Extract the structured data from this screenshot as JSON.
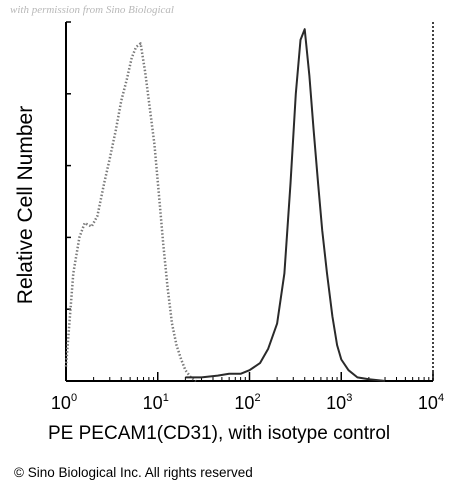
{
  "watermark": "with permission from Sino Biological",
  "copyright": "© Sino Biological Inc. All rights reserved",
  "chart_data": {
    "type": "area",
    "title": "",
    "xlabel": "PE PECAM1(CD31), with isotype control",
    "ylabel": "Relative Cell Number",
    "xscale": "log",
    "xlim": [
      1,
      10000
    ],
    "ylim": [
      0,
      100
    ],
    "grid": false,
    "x_ticks": [
      {
        "base": "10",
        "exp": "0"
      },
      {
        "base": "10",
        "exp": "1"
      },
      {
        "base": "10",
        "exp": "2"
      },
      {
        "base": "10",
        "exp": "3"
      },
      {
        "base": "10",
        "exp": "4"
      }
    ],
    "colors": {
      "axis": "#000000",
      "isotype": "#7a7a7a",
      "sample": "#2a2a2a"
    },
    "series": [
      {
        "line_style": "dotted",
        "x": [
          1.0,
          1.2,
          1.4,
          1.6,
          1.9,
          2.2,
          2.6,
          3.0,
          3.5,
          4.0,
          4.6,
          5.2,
          5.8,
          6.5,
          7.3,
          8.2,
          9.2,
          10.3,
          11.5,
          12.8,
          14.3,
          16.0,
          18.0,
          20.0,
          23.0,
          26.0
        ],
        "y": [
          4,
          30,
          40,
          44,
          43,
          46,
          55,
          62,
          70,
          78,
          84,
          90,
          93,
          94,
          86,
          76,
          66,
          52,
          38,
          26,
          16,
          10,
          6,
          3,
          1,
          0
        ]
      },
      {
        "line_style": "solid",
        "x": [
          20,
          30,
          45,
          60,
          80,
          100,
          130,
          160,
          200,
          240,
          280,
          320,
          360,
          400,
          450,
          500,
          560,
          620,
          700,
          800,
          900,
          1000,
          1200,
          1500,
          2000,
          3000
        ],
        "y": [
          1,
          1,
          1.5,
          2,
          2,
          3,
          5,
          9,
          16,
          30,
          55,
          80,
          95,
          98,
          85,
          70,
          55,
          42,
          30,
          18,
          10,
          6,
          3,
          1,
          0.5,
          0
        ]
      }
    ]
  }
}
